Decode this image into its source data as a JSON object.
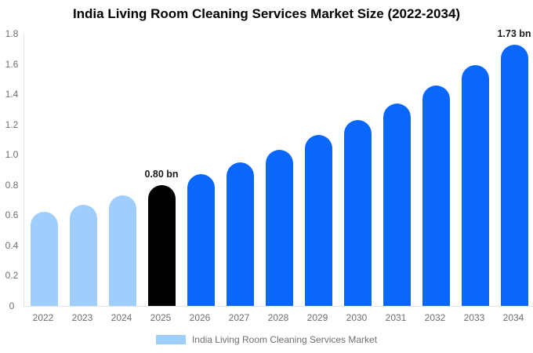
{
  "title": "India Living Room Cleaning Services Market Size (2022-2034)",
  "chart_data": {
    "type": "bar",
    "title": "India Living Room Cleaning Services Market Size (2022-2034)",
    "categories": [
      "2022",
      "2023",
      "2024",
      "2025",
      "2026",
      "2027",
      "2028",
      "2029",
      "2030",
      "2031",
      "2032",
      "2033",
      "2034"
    ],
    "values": [
      0.62,
      0.67,
      0.73,
      0.8,
      0.87,
      0.95,
      1.03,
      1.13,
      1.23,
      1.34,
      1.46,
      1.59,
      1.73
    ],
    "unit": "bn",
    "xlabel": "",
    "ylabel": "",
    "ylim": [
      0,
      1.8
    ],
    "yticks": [
      "0",
      "0.2",
      "0.4",
      "0.6",
      "0.8",
      "1.0",
      "1.2",
      "1.4",
      "1.6",
      "1.8"
    ],
    "grid": false,
    "legend_position": "bottom",
    "bar_colors": [
      "#9fcdfc",
      "#9fcdfc",
      "#9fcdfc",
      "#000000",
      "#0a67fb",
      "#0a67fb",
      "#0a67fb",
      "#0a67fb",
      "#0a67fb",
      "#0a67fb",
      "#0a67fb",
      "#0a67fb",
      "#0a67fb"
    ],
    "annotations": [
      {
        "category": "2025",
        "text": "0.80 bn"
      },
      {
        "category": "2034",
        "text": "1.73 bn"
      }
    ]
  },
  "legend": {
    "label": "India Living Room Cleaning Services Market",
    "swatch_color": "#9fcdfc"
  },
  "colors": {
    "light_blue": "#9fcdfc",
    "primary_blue": "#0a67fb",
    "highlight_black": "#000000",
    "axis_line": "#e3e3e3",
    "tick_text": "#6e6e6e",
    "annotation_text": "#1a1a1a",
    "title_text": "#000000",
    "background": "#ffffff"
  }
}
